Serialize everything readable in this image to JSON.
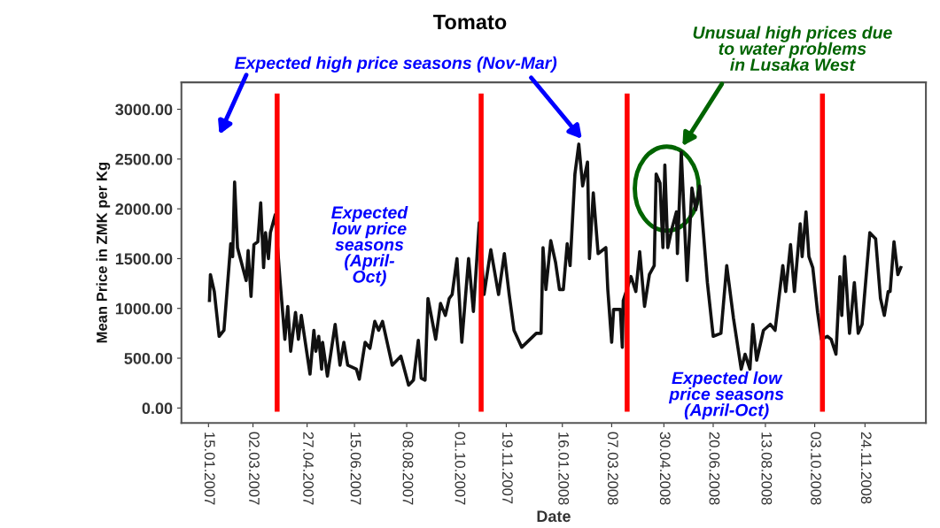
{
  "chart_data": {
    "type": "line",
    "title": "Tomato",
    "xlabel": "Date",
    "ylabel": "Mean Price in ZMK per Kg",
    "x": [
      "2007-01-16",
      "2007-01-17",
      "2007-01-21",
      "2007-01-26",
      "2007-01-31",
      "2007-02-07",
      "2007-02-09",
      "2007-02-11",
      "2007-02-14",
      "2007-02-23",
      "2007-02-25",
      "2007-02-28",
      "2007-03-03",
      "2007-03-07",
      "2007-03-10",
      "2007-03-13",
      "2007-03-15",
      "2007-03-18",
      "2007-03-20",
      "2007-03-25",
      "2007-03-30",
      "2007-04-04",
      "2007-04-07",
      "2007-04-10",
      "2007-04-15",
      "2007-04-18",
      "2007-04-21",
      "2007-04-30",
      "2007-05-04",
      "2007-05-06",
      "2007-05-09",
      "2007-05-12",
      "2007-05-13",
      "2007-05-18",
      "2007-05-26",
      "2007-05-31",
      "2007-06-04",
      "2007-06-08",
      "2007-06-17",
      "2007-06-20",
      "2007-06-26",
      "2007-07-01",
      "2007-07-06",
      "2007-07-10",
      "2007-07-14",
      "2007-07-24",
      "2007-08-02",
      "2007-08-10",
      "2007-08-15",
      "2007-08-20",
      "2007-08-23",
      "2007-08-27",
      "2007-08-30",
      "2007-09-07",
      "2007-09-12",
      "2007-09-17",
      "2007-09-21",
      "2007-09-24",
      "2007-09-29",
      "2007-10-04",
      "2007-10-11",
      "2007-10-16",
      "2007-10-22",
      "2007-10-27",
      "2007-11-03",
      "2007-11-11",
      "2007-11-17",
      "2007-11-22",
      "2007-11-27",
      "2007-12-05",
      "2007-12-20",
      "2007-12-25",
      "2007-12-27",
      "2007-12-30",
      "2008-01-04",
      "2008-01-09",
      "2008-01-13",
      "2008-01-17",
      "2008-01-21",
      "2008-01-24",
      "2008-01-29",
      "2008-02-02",
      "2008-02-06",
      "2008-02-11",
      "2008-02-13",
      "2008-02-17",
      "2008-02-22",
      "2008-03-01",
      "2008-03-03",
      "2008-03-07",
      "2008-03-09",
      "2008-03-16",
      "2008-03-18",
      "2008-03-19",
      "2008-03-27",
      "2008-04-01",
      "2008-04-05",
      "2008-04-10",
      "2008-04-15",
      "2008-04-20",
      "2008-04-22",
      "2008-04-26",
      "2008-04-29",
      "2008-05-01",
      "2008-05-04",
      "2008-05-08",
      "2008-05-13",
      "2008-05-14",
      "2008-05-18",
      "2008-05-24",
      "2008-05-29",
      "2008-06-02",
      "2008-06-06",
      "2008-06-14",
      "2008-06-20",
      "2008-06-28",
      "2008-07-04",
      "2008-07-11",
      "2008-07-19",
      "2008-07-23",
      "2008-07-28",
      "2008-07-31",
      "2008-08-04",
      "2008-08-11",
      "2008-08-18",
      "2008-08-23",
      "2008-08-31",
      "2008-09-03",
      "2008-09-08",
      "2008-09-12",
      "2008-09-18",
      "2008-09-20",
      "2008-09-24",
      "2008-09-27",
      "2008-10-01",
      "2008-10-06",
      "2008-10-10",
      "2008-10-16",
      "2008-10-20",
      "2008-10-25",
      "2008-10-29",
      "2008-10-31",
      "2008-11-03",
      "2008-11-08",
      "2008-11-13",
      "2008-11-17",
      "2008-11-21",
      "2008-11-29",
      "2008-12-05",
      "2008-12-10",
      "2008-12-14",
      "2008-12-18",
      "2008-12-20",
      "2008-12-24",
      "2008-12-28",
      "2008-12-31"
    ],
    "series": [
      {
        "color": "#111111",
        "values": [
          1080,
          1340,
          1170,
          720,
          780,
          1650,
          1520,
          2270,
          1610,
          1280,
          1580,
          1120,
          1640,
          1670,
          2060,
          1410,
          1760,
          1500,
          1760,
          1940,
          1280,
          690,
          1020,
          570,
          960,
          690,
          930,
          340,
          780,
          570,
          720,
          390,
          660,
          320,
          840,
          430,
          660,
          430,
          390,
          290,
          660,
          600,
          870,
          780,
          870,
          430,
          520,
          230,
          280,
          680,
          300,
          280,
          1100,
          690,
          1050,
          930,
          1100,
          1140,
          1500,
          660,
          1500,
          970,
          1860,
          1140,
          1590,
          1140,
          1550,
          1140,
          780,
          610,
          750,
          750,
          1610,
          1190,
          1680,
          1460,
          1190,
          1190,
          1650,
          1430,
          2350,
          2650,
          2230,
          2470,
          1500,
          2160,
          1550,
          1610,
          1190,
          660,
          990,
          990,
          610,
          1080,
          1320,
          1170,
          1570,
          1020,
          1340,
          1430,
          2350,
          2260,
          1610,
          2440,
          1610,
          1790,
          1970,
          1550,
          2570,
          1280,
          2210,
          1990,
          2230,
          1260,
          720,
          750,
          1430,
          900,
          390,
          540,
          390,
          840,
          480,
          780,
          840,
          780,
          1430,
          1170,
          1640,
          1170,
          1850,
          1520,
          1970,
          1520,
          1410,
          960,
          690,
          720,
          690,
          540,
          1320,
          930,
          1520,
          750,
          1260,
          750,
          840,
          1760,
          1700,
          1100,
          930,
          1170,
          1170,
          1670,
          1340,
          1410
        ]
      }
    ],
    "xlim": [
      "2006-12-18",
      "2009-01-26"
    ],
    "ylim": [
      -150,
      3270
    ],
    "xticks": [
      {
        "value": "2007-01-15",
        "label": "15.01.2007"
      },
      {
        "value": "2007-03-02",
        "label": "02.03.2007"
      },
      {
        "value": "2007-04-27",
        "label": "27.04.2007"
      },
      {
        "value": "2007-06-15",
        "label": "15.06.2007"
      },
      {
        "value": "2007-08-08",
        "label": "08.08.2007"
      },
      {
        "value": "2007-10-01",
        "label": "01.10.2007"
      },
      {
        "value": "2007-11-19",
        "label": "19.11.2007"
      },
      {
        "value": "2008-01-16",
        "label": "16.01.2008"
      },
      {
        "value": "2008-03-07",
        "label": "07.03.2008"
      },
      {
        "value": "2008-04-30",
        "label": "30.04.2008"
      },
      {
        "value": "2008-06-20",
        "label": "20.06.2008"
      },
      {
        "value": "2008-08-13",
        "label": "13.08.2008"
      },
      {
        "value": "2008-10-03",
        "label": "03.10.2008"
      },
      {
        "value": "2008-11-24",
        "label": "24.11.2008"
      }
    ],
    "yticks": [
      {
        "value": 0,
        "label": "0.00"
      },
      {
        "value": 500,
        "label": "500.00"
      },
      {
        "value": 1000,
        "label": "1000.00"
      },
      {
        "value": 1500,
        "label": "1500.00"
      },
      {
        "value": 2000,
        "label": "2000.00"
      },
      {
        "value": 2500,
        "label": "2500.00"
      },
      {
        "value": 3000,
        "label": "3000.00"
      }
    ],
    "ref_lines": [
      {
        "axis": "x",
        "value": "2007-03-27",
        "color": "#ff0000"
      },
      {
        "axis": "x",
        "value": "2007-10-24",
        "color": "#ff0000"
      },
      {
        "axis": "x",
        "value": "2008-03-23",
        "color": "#ff0000"
      },
      {
        "axis": "x",
        "value": "2008-10-11",
        "color": "#ff0000"
      }
    ],
    "annotations": [
      "Expected high price seasons (Nov-Mar)",
      "Unusual high prices due\nto water problems\nin Lusaka West",
      "Expected\nlow price\nseasons\n(April-\nOct)",
      "Expected low\nprice seasons\n(April-Oct)"
    ],
    "grid": false,
    "legend": false,
    "line_style": "solid",
    "marker": "none"
  }
}
